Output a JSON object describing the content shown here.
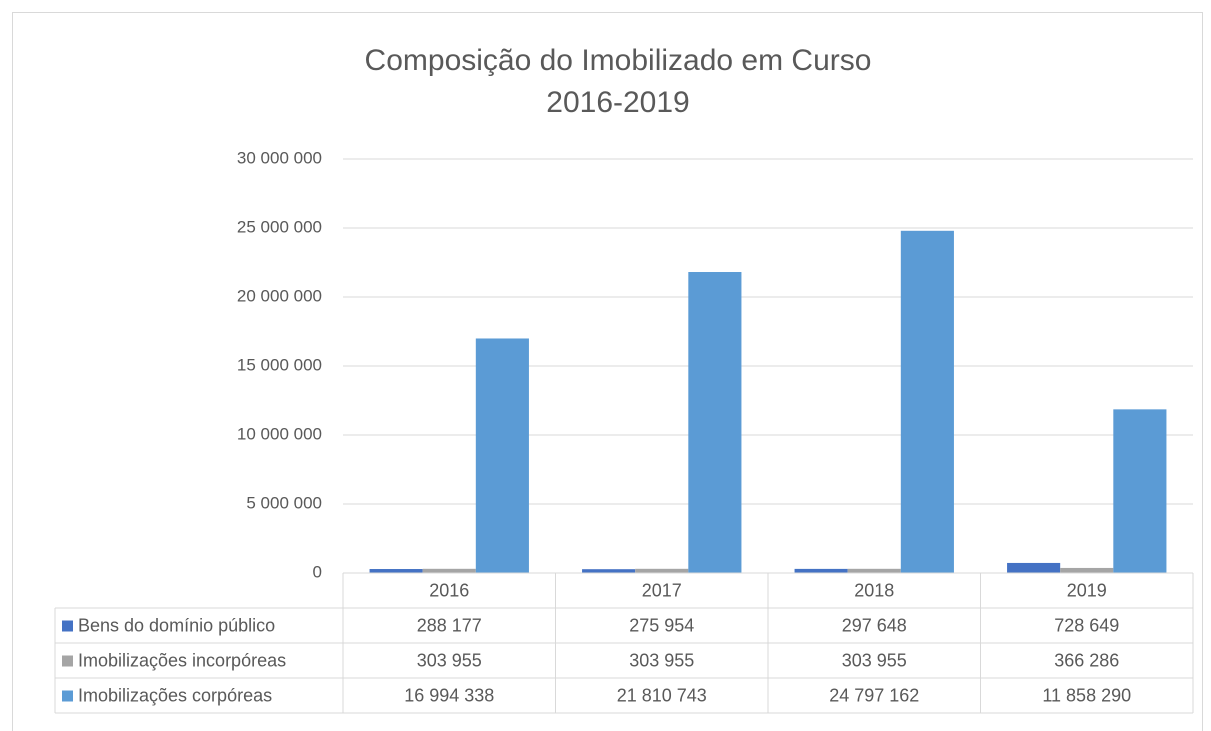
{
  "chart_data": {
    "type": "bar",
    "title": "Composição do Imobilizado em Curso",
    "subtitle": "2016-2019",
    "categories": [
      "2016",
      "2017",
      "2018",
      "2019"
    ],
    "series": [
      {
        "name": "Bens do domínio público",
        "color": "#4472c4",
        "values": [
          288177,
          275954,
          297648,
          728649
        ],
        "value_labels": [
          "288 177",
          "275 954",
          "297 648",
          "728 649"
        ]
      },
      {
        "name": "Imobilizações incorpóreas",
        "color": "#a5a5a5",
        "values": [
          303955,
          303955,
          303955,
          366286
        ],
        "value_labels": [
          "303 955",
          "303 955",
          "303 955",
          "366 286"
        ]
      },
      {
        "name": "Imobilizações corpóreas",
        "color": "#5b9bd5",
        "values": [
          16994338,
          21810743,
          24797162,
          11858290
        ],
        "value_labels": [
          "16 994 338",
          "21 810 743",
          "24 797 162",
          "11 858 290"
        ]
      }
    ],
    "ylim": [
      0,
      30000000
    ],
    "yticks": [
      0,
      {
        "value": 5000000,
        "label": "5 000 000"
      },
      {
        "value": 10000000,
        "label": "10 000 000"
      },
      {
        "value": 15000000,
        "label": "15 000 000"
      },
      {
        "value": 20000000,
        "label": "20 000 000"
      },
      {
        "value": 25000000,
        "label": "25 000 000"
      },
      {
        "value": 30000000,
        "label": "30 000 000"
      }
    ],
    "grid": true
  }
}
